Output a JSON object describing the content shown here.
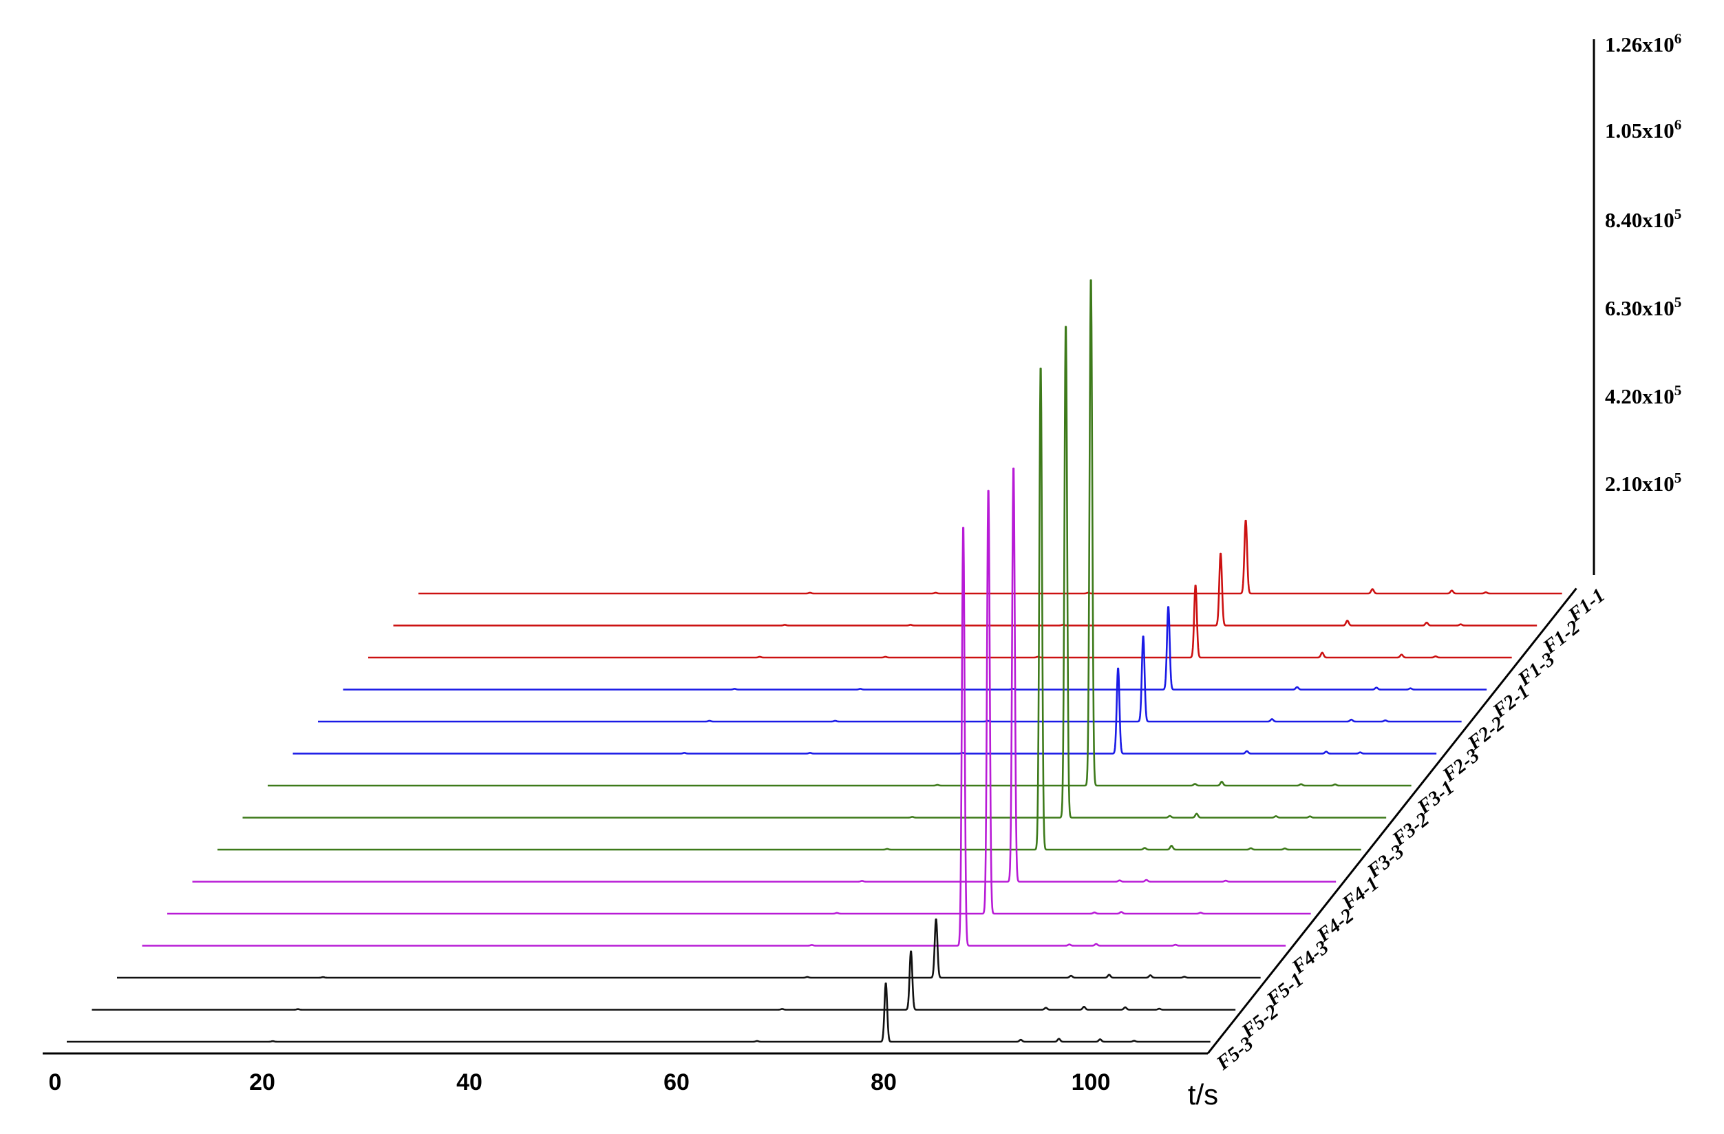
{
  "chart_data": {
    "type": "line",
    "style": "3d-waterfall",
    "xlabel": "t/s",
    "x_ticks": [
      "0",
      "20",
      "40",
      "60",
      "80",
      "100"
    ],
    "xlim": [
      0,
      111
    ],
    "z_ticks": [
      {
        "value": 210000,
        "mantissa": "2.10x10",
        "exp": "5"
      },
      {
        "value": 420000,
        "mantissa": "4.20x10",
        "exp": "5"
      },
      {
        "value": 630000,
        "mantissa": "6.30x10",
        "exp": "5"
      },
      {
        "value": 840000,
        "mantissa": "8.40x10",
        "exp": "5"
      },
      {
        "value": 1050000,
        "mantissa": "1.05x10",
        "exp": "6"
      },
      {
        "value": 1260000,
        "mantissa": "1.26x10",
        "exp": "6"
      }
    ],
    "zlim": [
      0,
      1260000
    ],
    "colors": {
      "F1": "#cc1111",
      "F2": "#1a1ae6",
      "F3": "#3d7a1a",
      "F4": "#b81bd6",
      "F5": "#111111"
    },
    "series": [
      {
        "name": "F1-1",
        "group": "F1",
        "peaks": [
          [
            80.3,
            150000
          ],
          [
            92.6,
            9000
          ],
          [
            100.3,
            6000
          ],
          [
            38.0,
            1500
          ],
          [
            50.2,
            1500
          ],
          [
            65.0,
            1500
          ],
          [
            103.6,
            2500
          ]
        ]
      },
      {
        "name": "F1-2",
        "group": "F1",
        "peaks": [
          [
            80.3,
            148000
          ],
          [
            92.6,
            10000
          ],
          [
            100.3,
            6000
          ],
          [
            38.0,
            1500
          ],
          [
            50.2,
            1500
          ],
          [
            65.0,
            1500
          ],
          [
            103.6,
            2500
          ]
        ]
      },
      {
        "name": "F1-3",
        "group": "F1",
        "peaks": [
          [
            80.3,
            148000
          ],
          [
            92.6,
            10000
          ],
          [
            100.3,
            6000
          ],
          [
            38.0,
            1500
          ],
          [
            50.2,
            1500
          ],
          [
            65.0,
            1500
          ],
          [
            103.6,
            2500
          ]
        ]
      },
      {
        "name": "F2-1",
        "group": "F2",
        "peaks": [
          [
            80.1,
            170000
          ],
          [
            92.6,
            5000
          ],
          [
            100.3,
            4000
          ],
          [
            38.0,
            1500
          ],
          [
            50.2,
            1500
          ],
          [
            65.0,
            1500
          ],
          [
            103.6,
            2500
          ]
        ]
      },
      {
        "name": "F2-2",
        "group": "F2",
        "peaks": [
          [
            80.1,
            175000
          ],
          [
            92.6,
            5000
          ],
          [
            100.3,
            4000
          ],
          [
            38.0,
            1500
          ],
          [
            50.2,
            1500
          ],
          [
            65.0,
            1500
          ],
          [
            103.6,
            2500
          ]
        ]
      },
      {
        "name": "F2-3",
        "group": "F2",
        "peaks": [
          [
            80.1,
            175000
          ],
          [
            92.6,
            5000
          ],
          [
            100.3,
            4000
          ],
          [
            38.0,
            1500
          ],
          [
            50.2,
            1500
          ],
          [
            65.0,
            1500
          ],
          [
            103.6,
            2500
          ]
        ]
      },
      {
        "name": "F3-1",
        "group": "F3",
        "peaks": [
          [
            79.9,
            1040000
          ],
          [
            92.6,
            8000
          ],
          [
            90.0,
            3500
          ],
          [
            100.3,
            3000
          ],
          [
            65.0,
            1500
          ],
          [
            103.6,
            2500
          ]
        ]
      },
      {
        "name": "F3-2",
        "group": "F3",
        "peaks": [
          [
            79.9,
            1010000
          ],
          [
            92.6,
            8000
          ],
          [
            90.0,
            3500
          ],
          [
            100.3,
            3000
          ],
          [
            65.0,
            1500
          ],
          [
            103.6,
            2500
          ]
        ]
      },
      {
        "name": "F3-3",
        "group": "F3",
        "peaks": [
          [
            79.9,
            990000
          ],
          [
            92.6,
            8000
          ],
          [
            90.0,
            3500
          ],
          [
            100.3,
            3000
          ],
          [
            65.0,
            1500
          ],
          [
            103.6,
            2500
          ]
        ]
      },
      {
        "name": "F4-1",
        "group": "F4",
        "peaks": [
          [
            79.7,
            850000
          ],
          [
            92.6,
            3500
          ],
          [
            90.0,
            2500
          ],
          [
            100.3,
            2000
          ],
          [
            65.0,
            1500
          ]
        ]
      },
      {
        "name": "F4-2",
        "group": "F4",
        "peaks": [
          [
            79.7,
            870000
          ],
          [
            92.6,
            3500
          ],
          [
            90.0,
            2500
          ],
          [
            100.3,
            2000
          ],
          [
            65.0,
            1500
          ]
        ]
      },
      {
        "name": "F4-3",
        "group": "F4",
        "peaks": [
          [
            79.7,
            860000
          ],
          [
            92.6,
            3500
          ],
          [
            90.0,
            2500
          ],
          [
            100.3,
            2000
          ],
          [
            65.0,
            1500
          ]
        ]
      },
      {
        "name": "F5-1",
        "group": "F5",
        "peaks": [
          [
            79.5,
            120000
          ],
          [
            96.3,
            6000
          ],
          [
            100.3,
            5000
          ],
          [
            92.6,
            4000
          ],
          [
            67.0,
            1500
          ],
          [
            20.0,
            1200
          ],
          [
            103.6,
            2000
          ]
        ]
      },
      {
        "name": "F5-2",
        "group": "F5",
        "peaks": [
          [
            79.5,
            120000
          ],
          [
            96.3,
            6000
          ],
          [
            100.3,
            5000
          ],
          [
            92.6,
            4000
          ],
          [
            67.0,
            1500
          ],
          [
            20.0,
            1200
          ],
          [
            103.6,
            2000
          ]
        ]
      },
      {
        "name": "F5-3",
        "group": "F5",
        "peaks": [
          [
            79.5,
            120000
          ],
          [
            96.3,
            6000
          ],
          [
            100.3,
            5000
          ],
          [
            92.6,
            4000
          ],
          [
            67.0,
            1500
          ],
          [
            20.0,
            1200
          ],
          [
            103.6,
            2000
          ]
        ]
      }
    ]
  }
}
